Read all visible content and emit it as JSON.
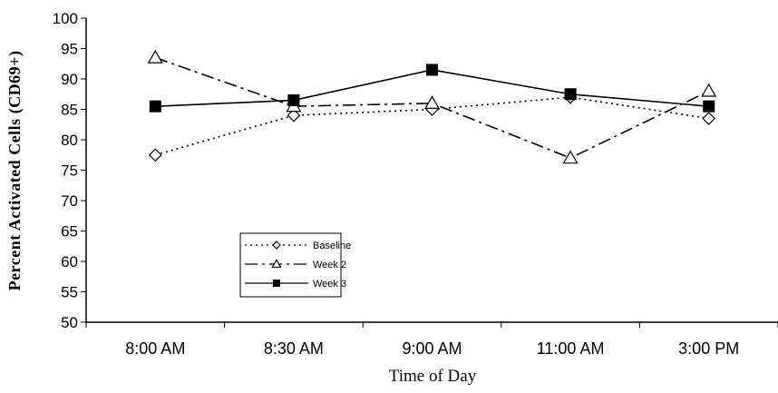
{
  "chart_data": {
    "type": "line",
    "title": "",
    "xlabel": "Time of Day",
    "ylabel": "Percent Activated Cells (CD69+)",
    "ylim": [
      50,
      100
    ],
    "yticks": [
      50,
      55,
      60,
      65,
      70,
      75,
      80,
      85,
      90,
      95,
      100
    ],
    "categories": [
      "8:00 AM",
      "8:30 AM",
      "9:00 AM",
      "11:00 AM",
      "3:00 PM"
    ],
    "legend_position": "bottom-left",
    "grid": false,
    "series": [
      {
        "name": "Baseline",
        "values": [
          77.5,
          84,
          85,
          87,
          83.5
        ],
        "marker": "diamond-open",
        "line": "dotted",
        "color": "#000000"
      },
      {
        "name": "Week 2",
        "values": [
          93.5,
          85.5,
          86,
          77,
          88
        ],
        "marker": "triangle-open",
        "line": "dash-dot",
        "color": "#000000"
      },
      {
        "name": "Week 3",
        "values": [
          85.5,
          86.5,
          91.5,
          87.5,
          85.5
        ],
        "marker": "square-filled",
        "line": "solid",
        "color": "#000000"
      }
    ]
  }
}
